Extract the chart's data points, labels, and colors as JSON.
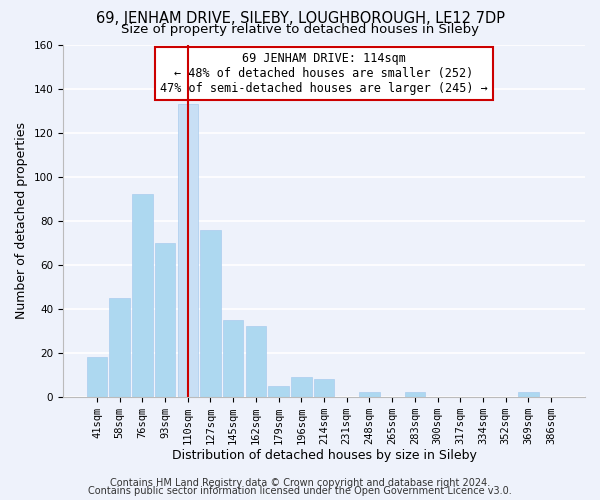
{
  "title_line1": "69, JENHAM DRIVE, SILEBY, LOUGHBOROUGH, LE12 7DP",
  "title_line2": "Size of property relative to detached houses in Sileby",
  "xlabel": "Distribution of detached houses by size in Sileby",
  "ylabel": "Number of detached properties",
  "bar_labels": [
    "41sqm",
    "58sqm",
    "76sqm",
    "93sqm",
    "110sqm",
    "127sqm",
    "145sqm",
    "162sqm",
    "179sqm",
    "196sqm",
    "214sqm",
    "231sqm",
    "248sqm",
    "265sqm",
    "283sqm",
    "300sqm",
    "317sqm",
    "334sqm",
    "352sqm",
    "369sqm",
    "386sqm"
  ],
  "bar_values": [
    18,
    45,
    92,
    70,
    133,
    76,
    35,
    32,
    5,
    9,
    8,
    0,
    2,
    0,
    2,
    0,
    0,
    0,
    0,
    2,
    0
  ],
  "bar_color": "#add8f0",
  "highlight_bar_index": 4,
  "highlight_bar_color": "#c8dff5",
  "vline_x": 4,
  "vline_color": "#cc0000",
  "ylim": [
    0,
    160
  ],
  "yticks": [
    0,
    20,
    40,
    60,
    80,
    100,
    120,
    140,
    160
  ],
  "annotation_line1": "69 JENHAM DRIVE: 114sqm",
  "annotation_line2": "← 48% of detached houses are smaller (252)",
  "annotation_line3": "47% of semi-detached houses are larger (245) →",
  "annotation_box_color": "#ffffff",
  "annotation_box_edge": "#cc0000",
  "footer_line1": "Contains HM Land Registry data © Crown copyright and database right 2024.",
  "footer_line2": "Contains public sector information licensed under the Open Government Licence v3.0.",
  "background_color": "#eef2fb",
  "grid_color": "#ffffff",
  "title_fontsize": 10.5,
  "subtitle_fontsize": 9.5,
  "axis_label_fontsize": 9,
  "tick_fontsize": 7.5,
  "footer_fontsize": 7,
  "annotation_fontsize": 8.5
}
